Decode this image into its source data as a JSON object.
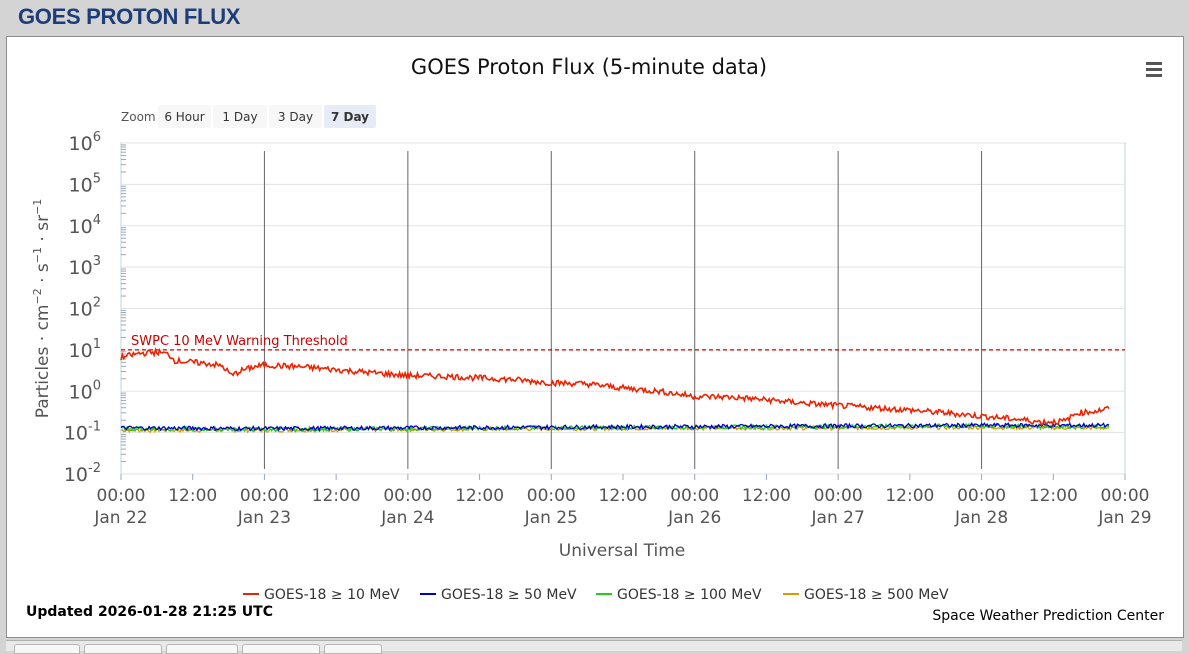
{
  "page": {
    "title": "GOES PROTON FLUX"
  },
  "chart": {
    "title": "GOES Proton Flux (5-minute data)",
    "zoom": {
      "label": "Zoom",
      "buttons": [
        {
          "label": "6 Hour",
          "selected": false
        },
        {
          "label": "1 Day",
          "selected": false
        },
        {
          "label": "3 Day",
          "selected": false
        },
        {
          "label": "7 Day",
          "selected": true
        }
      ]
    },
    "updated": "Updated 2026-01-28 21:25 UTC",
    "credit": "Space Weather Prediction Center",
    "menu_icon": "hamburger-menu-icon"
  },
  "chart_data": {
    "type": "line",
    "title": "GOES Proton Flux (5-minute data)",
    "xlabel": "Universal Time",
    "ylabel_parts": {
      "base": "Particles · cm",
      "exp1": "−2",
      "mid1": " · s",
      "exp2": "−1",
      "mid2": " · sr",
      "exp3": "−1"
    },
    "yscale": "log",
    "ylim": [
      0.01,
      1000000
    ],
    "yticks": [
      {
        "base": "10",
        "exp": "6",
        "value": 1000000
      },
      {
        "base": "10",
        "exp": "5",
        "value": 100000
      },
      {
        "base": "10",
        "exp": "4",
        "value": 10000
      },
      {
        "base": "10",
        "exp": "3",
        "value": 1000
      },
      {
        "base": "10",
        "exp": "2",
        "value": 100
      },
      {
        "base": "10",
        "exp": "1",
        "value": 10
      },
      {
        "base": "10",
        "exp": "0",
        "value": 1
      },
      {
        "base": "10",
        "exp": "-1",
        "value": 0.1
      },
      {
        "base": "10",
        "exp": "-2",
        "value": 0.01
      }
    ],
    "xlim": [
      "2026-01-22 00:00",
      "2026-01-29 00:00"
    ],
    "xticks": [
      {
        "time": "2026-01-22 00:00",
        "label": "00:00",
        "date": "Jan 22"
      },
      {
        "time": "2026-01-22 12:00",
        "label": "12:00",
        "date": ""
      },
      {
        "time": "2026-01-23 00:00",
        "label": "00:00",
        "date": "Jan 23"
      },
      {
        "time": "2026-01-23 12:00",
        "label": "12:00",
        "date": ""
      },
      {
        "time": "2026-01-24 00:00",
        "label": "00:00",
        "date": "Jan 24"
      },
      {
        "time": "2026-01-24 12:00",
        "label": "12:00",
        "date": ""
      },
      {
        "time": "2026-01-25 00:00",
        "label": "00:00",
        "date": "Jan 25"
      },
      {
        "time": "2026-01-25 12:00",
        "label": "12:00",
        "date": ""
      },
      {
        "time": "2026-01-26 00:00",
        "label": "00:00",
        "date": "Jan 26"
      },
      {
        "time": "2026-01-26 12:00",
        "label": "12:00",
        "date": ""
      },
      {
        "time": "2026-01-27 00:00",
        "label": "00:00",
        "date": "Jan 27"
      },
      {
        "time": "2026-01-27 12:00",
        "label": "12:00",
        "date": ""
      },
      {
        "time": "2026-01-28 00:00",
        "label": "00:00",
        "date": "Jan 28"
      },
      {
        "time": "2026-01-28 12:00",
        "label": "12:00",
        "date": ""
      },
      {
        "time": "2026-01-29 00:00",
        "label": "00:00",
        "date": "Jan 29"
      }
    ],
    "threshold": {
      "value": 10,
      "label": "SWPC 10 MeV Warning Threshold",
      "color": "#cc0000"
    },
    "series": [
      {
        "name": "GOES-18 ≥ 10 MeV",
        "color": "#ee2200",
        "points": [
          [
            "2026-01-22 00:00",
            6.5
          ],
          [
            "2026-01-22 03:00",
            8.2
          ],
          [
            "2026-01-22 06:00",
            8.8
          ],
          [
            "2026-01-22 08:00",
            7.8
          ],
          [
            "2026-01-22 09:00",
            5.5
          ],
          [
            "2026-01-22 12:00",
            5.0
          ],
          [
            "2026-01-22 15:00",
            4.6
          ],
          [
            "2026-01-22 17:00",
            4.0
          ],
          [
            "2026-01-22 18:30",
            2.4
          ],
          [
            "2026-01-22 20:00",
            3.1
          ],
          [
            "2026-01-22 22:00",
            3.8
          ],
          [
            "2026-01-23 00:00",
            4.3
          ],
          [
            "2026-01-23 06:00",
            3.9
          ],
          [
            "2026-01-23 12:00",
            3.3
          ],
          [
            "2026-01-23 18:00",
            2.8
          ],
          [
            "2026-01-24 00:00",
            2.4
          ],
          [
            "2026-01-24 06:00",
            2.3
          ],
          [
            "2026-01-24 12:00",
            2.1
          ],
          [
            "2026-01-24 18:00",
            1.9
          ],
          [
            "2026-01-25 00:00",
            1.6
          ],
          [
            "2026-01-25 06:00",
            1.5
          ],
          [
            "2026-01-25 12:00",
            1.2
          ],
          [
            "2026-01-25 18:00",
            1.0
          ],
          [
            "2026-01-26 00:00",
            0.75
          ],
          [
            "2026-01-26 06:00",
            0.72
          ],
          [
            "2026-01-26 12:00",
            0.62
          ],
          [
            "2026-01-26 18:00",
            0.52
          ],
          [
            "2026-01-27 00:00",
            0.45
          ],
          [
            "2026-01-27 06:00",
            0.4
          ],
          [
            "2026-01-27 12:00",
            0.35
          ],
          [
            "2026-01-27 18:00",
            0.3
          ],
          [
            "2026-01-28 00:00",
            0.25
          ],
          [
            "2026-01-28 06:00",
            0.21
          ],
          [
            "2026-01-28 10:00",
            0.18
          ],
          [
            "2026-01-28 14:00",
            0.19
          ],
          [
            "2026-01-28 16:00",
            0.3
          ],
          [
            "2026-01-28 19:00",
            0.33
          ],
          [
            "2026-01-28 21:20",
            0.38
          ]
        ]
      },
      {
        "name": "GOES-18 ≥ 50 MeV",
        "color": "#0000cc",
        "points": [
          [
            "2026-01-22 00:00",
            0.13
          ],
          [
            "2026-01-23 00:00",
            0.125
          ],
          [
            "2026-01-24 00:00",
            0.13
          ],
          [
            "2026-01-25 00:00",
            0.135
          ],
          [
            "2026-01-26 00:00",
            0.14
          ],
          [
            "2026-01-27 00:00",
            0.145
          ],
          [
            "2026-01-28 00:00",
            0.15
          ],
          [
            "2026-01-28 21:20",
            0.15
          ]
        ]
      },
      {
        "name": "GOES-18 ≥ 100 MeV",
        "color": "#22cc22",
        "points": [
          [
            "2026-01-22 00:00",
            0.125
          ],
          [
            "2026-01-23 00:00",
            0.12
          ],
          [
            "2026-01-24 00:00",
            0.125
          ],
          [
            "2026-01-25 00:00",
            0.13
          ],
          [
            "2026-01-26 00:00",
            0.135
          ],
          [
            "2026-01-27 00:00",
            0.14
          ],
          [
            "2026-01-28 00:00",
            0.145
          ],
          [
            "2026-01-28 21:20",
            0.14
          ]
        ]
      },
      {
        "name": "GOES-18 ≥ 500 MeV",
        "color": "#dd9900",
        "points": [
          [
            "2026-01-22 00:00",
            0.115
          ],
          [
            "2026-01-23 00:00",
            0.115
          ],
          [
            "2026-01-24 00:00",
            0.12
          ],
          [
            "2026-01-25 00:00",
            0.125
          ],
          [
            "2026-01-26 00:00",
            0.13
          ],
          [
            "2026-01-27 00:00",
            0.13
          ],
          [
            "2026-01-28 00:00",
            0.135
          ],
          [
            "2026-01-28 21:20",
            0.13
          ]
        ]
      }
    ],
    "grid": true,
    "legend_position": "bottom-center"
  }
}
